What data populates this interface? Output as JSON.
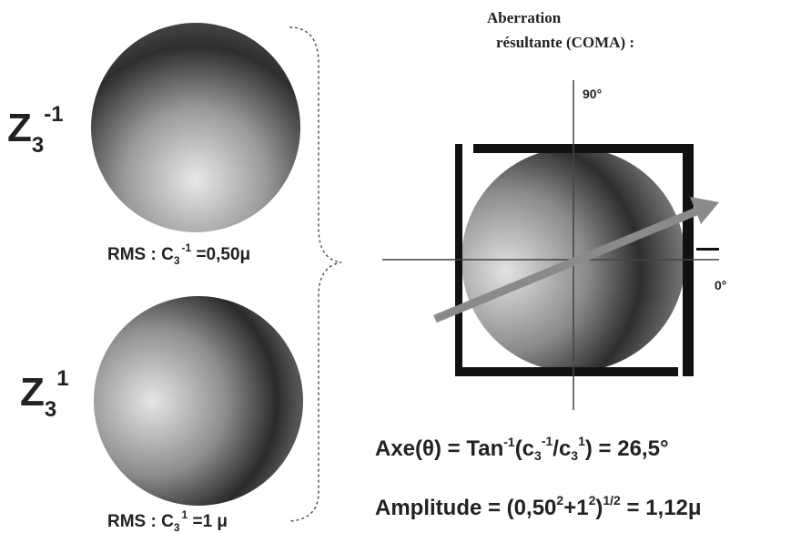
{
  "left": {
    "top": {
      "symbol": [
        "Z",
        "3",
        "-1"
      ],
      "rms": [
        "RMS : C",
        "3",
        "-1",
        " =0,50μ"
      ]
    },
    "bottom": {
      "symbol": [
        "Z",
        "3",
        "1"
      ],
      "rms": [
        "RMS : C",
        "3",
        "1",
        " =1 μ"
      ]
    }
  },
  "right": {
    "title": [
      "Aberration",
      "résultante (COMA) :"
    ],
    "axis_90": "90°",
    "axis_0": "0°",
    "axe": [
      "Axe(θ) = Tan",
      "-1",
      "(c",
      "3",
      "-1",
      "/c",
      "3",
      "1",
      ") = 26,5°"
    ],
    "amplitude": [
      "Amplitude = (0,50",
      "2",
      "+1",
      "2",
      ")",
      "1/2",
      " = 1,12μ"
    ]
  }
}
